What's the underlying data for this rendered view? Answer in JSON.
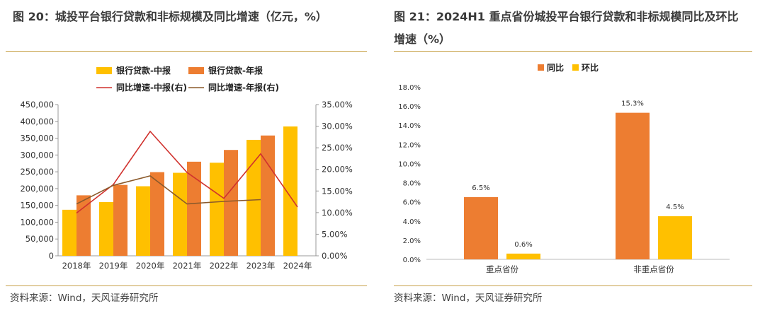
{
  "left": {
    "title": "图 20：城投平台银行贷款和非标规模及同比增速（亿元，%）",
    "source": "资料来源：Wind，天风证券研究所",
    "chart_data": {
      "type": "bar",
      "categories": [
        "2018年",
        "2019年",
        "2020年",
        "2021年",
        "2022年",
        "2023年",
        "2024年"
      ],
      "series": [
        {
          "name": "银行贷款-中报",
          "type": "bar",
          "axis": "left",
          "color": "#FFC000",
          "values": [
            137000,
            160000,
            207000,
            247000,
            277000,
            345000,
            385000
          ]
        },
        {
          "name": "银行贷款-年报",
          "type": "bar",
          "axis": "left",
          "color": "#ED7D31",
          "values": [
            180000,
            211000,
            249000,
            280000,
            315000,
            358000,
            null
          ]
        },
        {
          "name": "同比增速-中报(右)",
          "type": "line",
          "axis": "right",
          "color": "#D0312D",
          "values": [
            9.9,
            16.5,
            28.8,
            19.3,
            13.3,
            23.6,
            11.3
          ]
        },
        {
          "name": "同比增速-年报(右)",
          "type": "line",
          "axis": "right",
          "color": "#8B5A2B",
          "values": [
            12.0,
            16.3,
            18.5,
            12.0,
            12.6,
            13.0,
            null
          ]
        }
      ],
      "y_left": {
        "min": 0,
        "max": 450000,
        "ticks": [
          "0",
          "50,000",
          "100,000",
          "150,000",
          "200,000",
          "250,000",
          "300,000",
          "350,000",
          "400,000",
          "450,000"
        ]
      },
      "y_right": {
        "min": 0,
        "max": 35,
        "ticks": [
          "0.00%",
          "5.00%",
          "10.00%",
          "15.00%",
          "20.00%",
          "25.00%",
          "30.00%",
          "35.00%"
        ]
      },
      "legend_position": "top-center",
      "grid": false
    }
  },
  "right": {
    "title_line1": "图 21：2024H1 重点省份城投平台银行贷款和非标规模同比及环比",
    "title_line2": "增速（%）",
    "source": "资料来源：Wind，天风证券研究所",
    "chart_data": {
      "type": "bar",
      "categories": [
        "重点省份",
        "非重点省份"
      ],
      "series": [
        {
          "name": "同比",
          "color": "#ED7D31",
          "values": [
            6.5,
            15.3
          ],
          "labels": [
            "6.5%",
            "15.3%"
          ]
        },
        {
          "name": "环比",
          "color": "#FFC000",
          "values": [
            0.6,
            4.5
          ],
          "labels": [
            "0.6%",
            "4.5%"
          ]
        }
      ],
      "y": {
        "min": 0,
        "max": 18,
        "ticks": [
          "0.0%",
          "2.0%",
          "4.0%",
          "6.0%",
          "8.0%",
          "10.0%",
          "12.0%",
          "14.0%",
          "16.0%",
          "18.0%"
        ]
      },
      "legend_position": "top-center",
      "grid": false
    }
  }
}
